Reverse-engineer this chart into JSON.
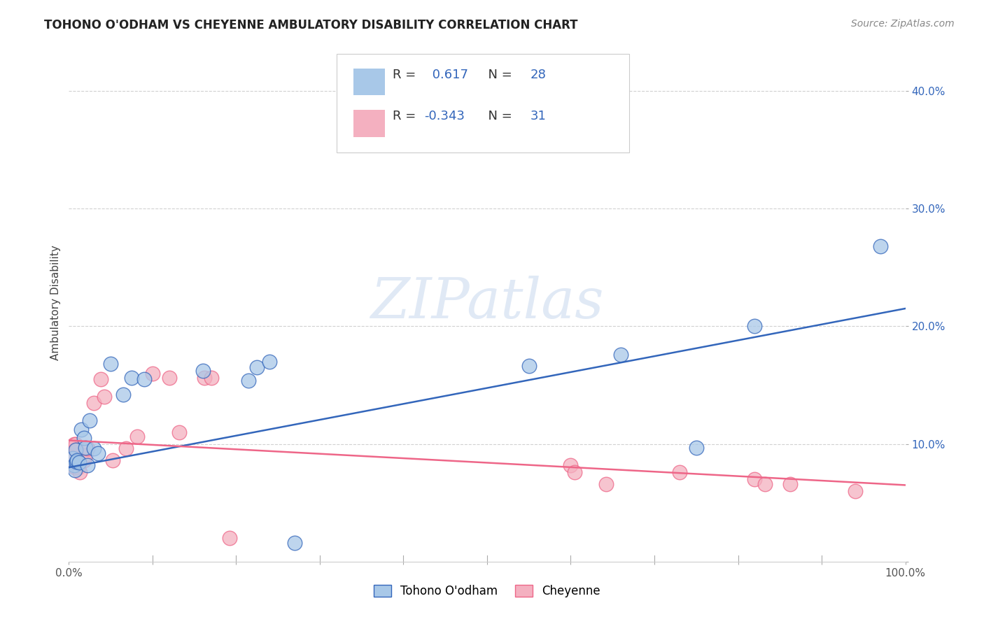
{
  "title": "TOHONO O'ODHAM VS CHEYENNE AMBULATORY DISABILITY CORRELATION CHART",
  "source": "Source: ZipAtlas.com",
  "ylabel": "Ambulatory Disability",
  "xlim": [
    0.0,
    1.0
  ],
  "ylim": [
    0.0,
    0.44
  ],
  "xticks": [
    0.0,
    0.1,
    0.2,
    0.3,
    0.4,
    0.5,
    0.6,
    0.7,
    0.8,
    0.9,
    1.0
  ],
  "yticks": [
    0.0,
    0.1,
    0.2,
    0.3,
    0.4
  ],
  "legend_R1": "0.617",
  "legend_N1": "28",
  "legend_R2": "-0.343",
  "legend_N2": "31",
  "color_blue": "#A8C8E8",
  "color_pink": "#F4B0C0",
  "line_blue": "#3366BB",
  "line_pink": "#EE6688",
  "watermark": "ZIPatlas",
  "tohono_x": [
    0.005,
    0.006,
    0.007,
    0.008,
    0.009,
    0.01,
    0.012,
    0.015,
    0.018,
    0.02,
    0.022,
    0.025,
    0.03,
    0.035,
    0.05,
    0.065,
    0.075,
    0.09,
    0.16,
    0.215,
    0.225,
    0.24,
    0.27,
    0.55,
    0.66,
    0.75,
    0.82,
    0.97
  ],
  "tohono_y": [
    0.088,
    0.082,
    0.078,
    0.095,
    0.085,
    0.086,
    0.084,
    0.112,
    0.105,
    0.097,
    0.082,
    0.12,
    0.096,
    0.092,
    0.168,
    0.142,
    0.156,
    0.155,
    0.162,
    0.154,
    0.165,
    0.17,
    0.016,
    0.166,
    0.176,
    0.097,
    0.2,
    0.268
  ],
  "cheyenne_x": [
    0.005,
    0.006,
    0.007,
    0.008,
    0.009,
    0.01,
    0.011,
    0.013,
    0.018,
    0.02,
    0.022,
    0.03,
    0.038,
    0.042,
    0.052,
    0.068,
    0.082,
    0.1,
    0.12,
    0.132,
    0.162,
    0.17,
    0.192,
    0.6,
    0.605,
    0.642,
    0.73,
    0.82,
    0.832,
    0.862,
    0.94
  ],
  "cheyenne_y": [
    0.09,
    0.1,
    0.08,
    0.1,
    0.095,
    0.085,
    0.08,
    0.076,
    0.086,
    0.09,
    0.096,
    0.135,
    0.155,
    0.14,
    0.086,
    0.096,
    0.106,
    0.16,
    0.156,
    0.11,
    0.156,
    0.156,
    0.02,
    0.082,
    0.076,
    0.066,
    0.076,
    0.07,
    0.066,
    0.066,
    0.06
  ],
  "blue_line_x": [
    0.0,
    1.0
  ],
  "blue_line_y": [
    0.08,
    0.215
  ],
  "pink_line_x": [
    0.0,
    1.0
  ],
  "pink_line_y": [
    0.103,
    0.065
  ]
}
